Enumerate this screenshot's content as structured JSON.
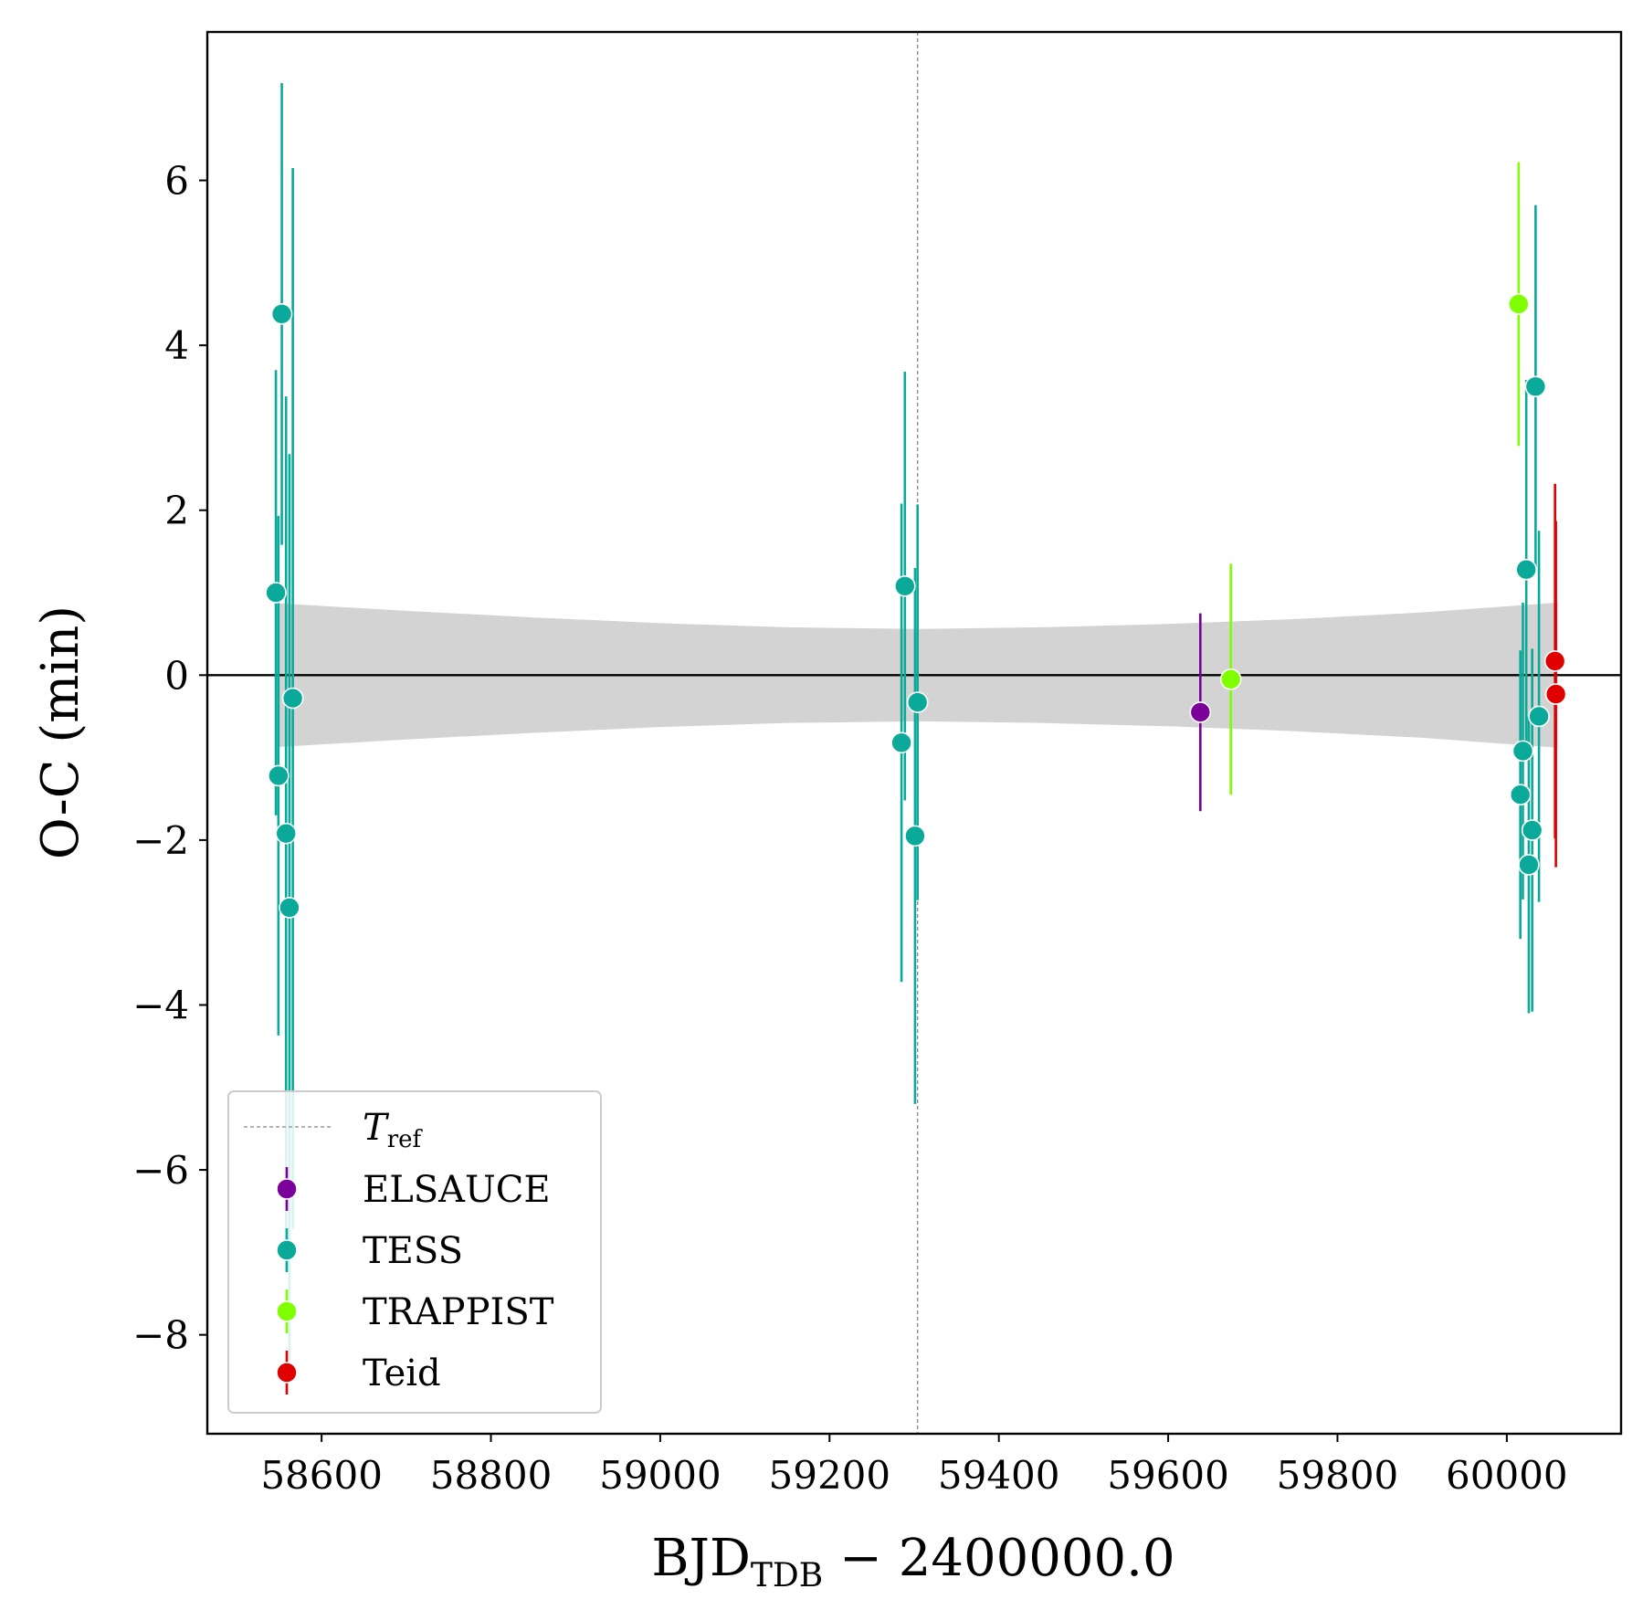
{
  "chart_data": {
    "type": "scatter",
    "xlabel": {
      "main": "BJD",
      "sub": "TDB",
      "rest": " − 2400000.0"
    },
    "ylabel": "O-C (min)",
    "xlim": [
      58465,
      60135
    ],
    "ylim": [
      -9.2,
      7.8
    ],
    "xticks": [
      58600,
      58800,
      59000,
      59200,
      59400,
      59600,
      59800,
      60000
    ],
    "xtick_labels": [
      "58600",
      "58800",
      "59000",
      "59200",
      "59400",
      "59600",
      "59800",
      "60000"
    ],
    "yticks": [
      -8,
      -6,
      -4,
      -2,
      0,
      2,
      4,
      6
    ],
    "ytick_labels": [
      "−8",
      "−6",
      "−4",
      "−2",
      "0",
      "2",
      "4",
      "6"
    ],
    "grid": false,
    "reference_line": {
      "x": 59304,
      "label_main": "T",
      "label_sub": "ref",
      "style": "dashed",
      "color": "#888888"
    },
    "zero_line": {
      "y": 0,
      "color": "#000000"
    },
    "uncertainty_band": {
      "color": "#d3d3d3",
      "x": [
        58550,
        58700,
        58850,
        59000,
        59150,
        59304,
        59450,
        59600,
        59750,
        59900,
        60060
      ],
      "half_width": [
        0.87,
        0.78,
        0.7,
        0.63,
        0.58,
        0.56,
        0.58,
        0.62,
        0.68,
        0.76,
        0.88
      ]
    },
    "legend": {
      "position": "lower-left"
    },
    "series": [
      {
        "name": "ELSAUCE",
        "color": "#7b0099",
        "points": [
          {
            "x": 59638,
            "y": -0.45,
            "err": 1.2
          }
        ]
      },
      {
        "name": "TESS",
        "color": "#0aa99a",
        "points": [
          {
            "x": 58546,
            "y": 1.0,
            "err": 2.7
          },
          {
            "x": 58549,
            "y": -1.22,
            "err": 3.15
          },
          {
            "x": 58553,
            "y": 4.38,
            "err": 2.8
          },
          {
            "x": 58558,
            "y": -1.92,
            "err": 5.3
          },
          {
            "x": 58562,
            "y": -2.82,
            "err": 5.5
          },
          {
            "x": 58566,
            "y": -0.28,
            "err": 6.43
          },
          {
            "x": 59285,
            "y": -0.82,
            "err": 2.9
          },
          {
            "x": 59289,
            "y": 1.08,
            "err": 2.6
          },
          {
            "x": 59301,
            "y": -1.95,
            "err": 3.25
          },
          {
            "x": 59304,
            "y": -0.33,
            "err": 2.4
          },
          {
            "x": 60016,
            "y": -1.45,
            "err": 1.75
          },
          {
            "x": 60019,
            "y": -0.92,
            "err": 1.8
          },
          {
            "x": 60023,
            "y": 1.28,
            "err": 2.3
          },
          {
            "x": 60026,
            "y": -2.3,
            "err": 1.8
          },
          {
            "x": 60030,
            "y": -1.88,
            "err": 2.2
          },
          {
            "x": 60034,
            "y": 3.5,
            "err": 2.2
          },
          {
            "x": 60038,
            "y": -0.5,
            "err": 2.25
          }
        ]
      },
      {
        "name": "TRAPPIST",
        "color": "#7fff00",
        "points": [
          {
            "x": 59674,
            "y": -0.05,
            "err": 1.4
          },
          {
            "x": 60014,
            "y": 4.5,
            "err": 1.72
          }
        ]
      },
      {
        "name": "Teid",
        "color": "#e00000",
        "points": [
          {
            "x": 60057,
            "y": 0.17,
            "err": 2.15
          },
          {
            "x": 60058,
            "y": -0.23,
            "err": 2.1
          }
        ]
      }
    ]
  }
}
